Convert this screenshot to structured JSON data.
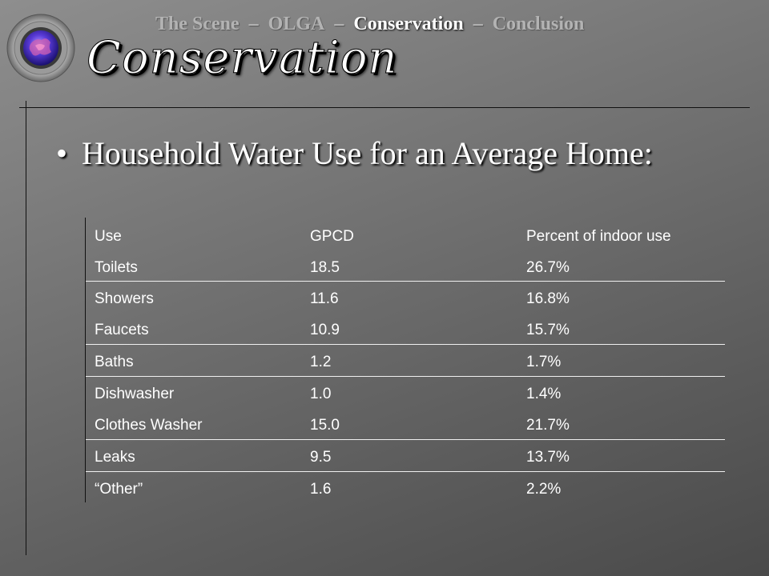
{
  "nav": {
    "items": [
      {
        "label": "The Scene",
        "current": false
      },
      {
        "label": "OLGA",
        "current": false
      },
      {
        "label": "Conservation",
        "current": true
      },
      {
        "label": "Conclusion",
        "current": false
      }
    ],
    "separator": "–"
  },
  "logo": {
    "icon": "globe-seal-icon"
  },
  "slide": {
    "title": "Conservation",
    "bullet_marker": "•",
    "bullet_text": "Household Water Use for an Average Home:"
  },
  "table": {
    "headers": [
      "Use",
      "GPCD",
      "Percent of indoor use"
    ],
    "rows": [
      [
        "Toilets",
        "18.5",
        "26.7%"
      ],
      [
        "Showers",
        "11.6",
        "16.8%"
      ],
      [
        "Faucets",
        "10.9",
        "15.7%"
      ],
      [
        "Baths",
        "1.2",
        "1.7%"
      ],
      [
        "Dishwasher",
        "1.0",
        "1.4%"
      ],
      [
        "Clothes Washer",
        "15.0",
        "21.7%"
      ],
      [
        "Leaks",
        "9.5",
        "13.7%"
      ],
      [
        "“Other”",
        "1.6",
        "2.2%"
      ]
    ]
  }
}
